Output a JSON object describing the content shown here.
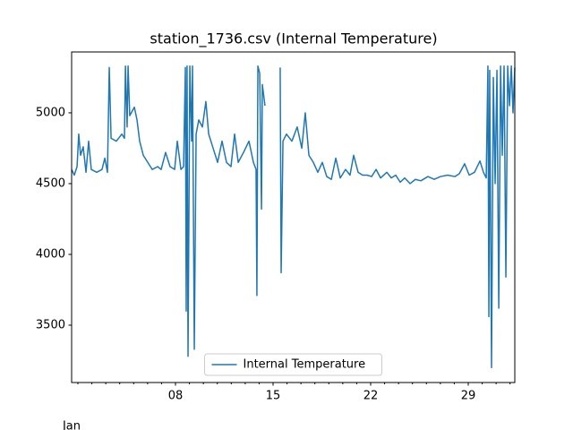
{
  "chart_data": {
    "type": "line",
    "title": "station_1736.csv (Internal Temperature)",
    "x_period_label": "Jan",
    "x": [
      0.55,
      0.74,
      0.94,
      1.06,
      1.19,
      1.38,
      1.58,
      1.77,
      1.96,
      2.35,
      2.73,
      2.93,
      3.12,
      3.25,
      3.38,
      3.76,
      4.15,
      4.34,
      4.41,
      4.53,
      4.6,
      4.72,
      5.05,
      5.24,
      5.43,
      5.69,
      6.01,
      6.33,
      6.72,
      6.97,
      7.29,
      7.61,
      7.94,
      8.13,
      8.39,
      8.58,
      8.71,
      8.77,
      8.83,
      8.9,
      9.03,
      9.16,
      9.22,
      9.35,
      9.48,
      9.67,
      9.93,
      10.18,
      10.38,
      10.7,
      11.02,
      11.34,
      11.66,
      11.98,
      12.24,
      12.5,
      12.88,
      13.27,
      13.59,
      13.78,
      13.84,
      13.91,
      14.04,
      14.17,
      14.23,
      14.42,
      15.0,
      15.51,
      15.58,
      15.71,
      15.96,
      16.35,
      16.73,
      17.06,
      17.31,
      17.57,
      17.89,
      18.21,
      18.53,
      18.85,
      19.18,
      19.5,
      19.82,
      20.2,
      20.52,
      20.78,
      21.1,
      21.42,
      21.74,
      22.07,
      22.39,
      22.71,
      23.16,
      23.48,
      23.8,
      24.12,
      24.44,
      24.83,
      25.21,
      25.6,
      26.11,
      26.56,
      27.01,
      27.52,
      28.04,
      28.36,
      28.74,
      29.07,
      29.45,
      29.84,
      30.09,
      30.29,
      30.41,
      30.48,
      30.54,
      30.67,
      30.8,
      30.93,
      31.06,
      31.19,
      31.32,
      31.44,
      31.57,
      31.7,
      31.83,
      31.96,
      32.09,
      32.21,
      32.34
    ],
    "series": [
      {
        "name": "Internal Temperature",
        "color": "#1f77b4",
        "values": [
          4600,
          4560,
          4620,
          4850,
          4700,
          4760,
          4580,
          4800,
          4600,
          4580,
          4600,
          4680,
          4580,
          5320,
          4820,
          4800,
          4850,
          4820,
          5330,
          4900,
          5330,
          4980,
          5040,
          4950,
          4800,
          4700,
          4650,
          4600,
          4620,
          4600,
          4720,
          4620,
          4600,
          4800,
          4600,
          4620,
          5320,
          3600,
          5330,
          3280,
          5330,
          4800,
          5330,
          3330,
          4850,
          4950,
          4900,
          5080,
          4850,
          4750,
          4650,
          4800,
          4650,
          4620,
          4850,
          4650,
          4720,
          4800,
          4650,
          4600,
          3710,
          5330,
          5280,
          4320,
          5200,
          5050,
          null,
          5320,
          3870,
          4800,
          4850,
          4800,
          4900,
          4750,
          5000,
          4700,
          4650,
          4580,
          4650,
          4550,
          4530,
          4680,
          4540,
          4600,
          4560,
          4700,
          4580,
          4560,
          4560,
          4550,
          4600,
          4540,
          4580,
          4540,
          4560,
          4510,
          4540,
          4500,
          4530,
          4520,
          4550,
          4530,
          4550,
          4560,
          4550,
          4570,
          4640,
          4560,
          4580,
          4660,
          4580,
          4540,
          5330,
          3560,
          5300,
          3200,
          5250,
          4500,
          5300,
          3620,
          5330,
          4700,
          5330,
          3840,
          5330,
          5050,
          5330,
          5000,
          5320
        ]
      }
    ],
    "xlim": [
      0.55,
      32.34
    ],
    "xticks": [
      {
        "value": 8,
        "label": "08"
      },
      {
        "value": 15,
        "label": "15"
      },
      {
        "value": 22,
        "label": "22"
      },
      {
        "value": 29,
        "label": "29"
      }
    ],
    "xminor_ticks": [
      1,
      2,
      3,
      4,
      5,
      6,
      7,
      9,
      10,
      11,
      12,
      13,
      14,
      16,
      17,
      18,
      19,
      20,
      21,
      23,
      24,
      25,
      26,
      27,
      28,
      30,
      31,
      32
    ],
    "ylim": [
      3095,
      5430
    ],
    "yticks": [
      3500,
      4000,
      4500,
      5000
    ],
    "legend": "lower center"
  }
}
